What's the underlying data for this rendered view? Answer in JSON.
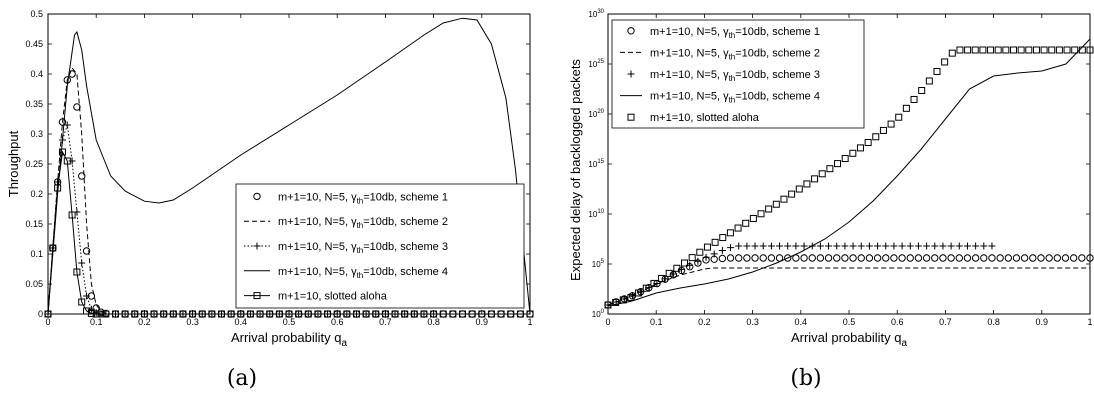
{
  "chart_data": [
    {
      "type": "line",
      "caption": "(a)",
      "xlabel": "Arrival probability q",
      "xlabel_sub": "a",
      "ylabel": "Throughput",
      "xlim": [
        0,
        1
      ],
      "ylim": [
        0,
        0.5
      ],
      "xticks": [
        "0",
        "0.1",
        "0.2",
        "0.3",
        "0.4",
        "0.5",
        "0.6",
        "0.7",
        "0.8",
        "0.9",
        "1"
      ],
      "yticks": [
        "0",
        "0.05",
        "0.1",
        "0.15",
        "0.2",
        "0.25",
        "0.3",
        "0.35",
        "0.4",
        "0.45",
        "0.5"
      ],
      "legend_position": "center-right",
      "series": [
        {
          "name": "m+1=10, N=5, γth=10db, scheme 1",
          "style": "o-markers",
          "x": [
            0,
            0.01,
            0.02,
            0.03,
            0.04,
            0.05,
            0.06,
            0.07,
            0.08,
            0.09,
            0.1,
            0.11,
            0.12,
            0.13,
            0.15,
            0.2,
            0.3,
            0.4,
            0.5,
            0.6,
            0.7,
            0.8,
            0.9,
            1.0
          ],
          "y": [
            0,
            0.11,
            0.22,
            0.32,
            0.39,
            0.4,
            0.345,
            0.23,
            0.105,
            0.03,
            0.01,
            0.003,
            0.001,
            0,
            0,
            0,
            0,
            0,
            0,
            0,
            0,
            0,
            0,
            0
          ]
        },
        {
          "name": "m+1=10, N=5, γth=10db, scheme 2",
          "style": "dashed",
          "x": [
            0,
            0.01,
            0.02,
            0.03,
            0.04,
            0.05,
            0.06,
            0.07,
            0.08,
            0.09,
            0.1,
            0.11,
            0.12,
            0.13,
            0.15,
            0.2,
            0.5,
            1.0
          ],
          "y": [
            0,
            0.11,
            0.22,
            0.32,
            0.39,
            0.41,
            0.4,
            0.3,
            0.15,
            0.05,
            0.015,
            0.005,
            0.001,
            0,
            0,
            0,
            0,
            0
          ]
        },
        {
          "name": "m+1=10, N=5, γth=10db, scheme 3",
          "style": "dotted-plus",
          "x": [
            0,
            0.01,
            0.02,
            0.03,
            0.04,
            0.05,
            0.06,
            0.07,
            0.08,
            0.09,
            0.1,
            0.11,
            0.12,
            0.13,
            0.15,
            0.2,
            0.3,
            0.4,
            0.5,
            0.6,
            0.7,
            0.8
          ],
          "y": [
            0,
            0.11,
            0.22,
            0.29,
            0.315,
            0.255,
            0.17,
            0.085,
            0.03,
            0.008,
            0.002,
            0,
            0,
            0,
            0,
            0,
            0,
            0,
            0,
            0,
            0,
            0
          ]
        },
        {
          "name": "m+1=10, N=5, γth=10db, scheme 4",
          "style": "solid",
          "x": [
            0,
            0.02,
            0.04,
            0.055,
            0.06,
            0.07,
            0.08,
            0.1,
            0.13,
            0.16,
            0.2,
            0.23,
            0.26,
            0.3,
            0.4,
            0.5,
            0.6,
            0.7,
            0.78,
            0.82,
            0.86,
            0.89,
            0.92,
            0.95,
            0.97,
            0.985,
            1.0
          ],
          "y": [
            0,
            0.2,
            0.38,
            0.465,
            0.47,
            0.44,
            0.38,
            0.29,
            0.23,
            0.205,
            0.188,
            0.185,
            0.19,
            0.21,
            0.265,
            0.315,
            0.365,
            0.42,
            0.465,
            0.485,
            0.493,
            0.49,
            0.45,
            0.36,
            0.24,
            0.12,
            0
          ]
        },
        {
          "name": "m+1=10, slotted aloha",
          "style": "square-markers",
          "x": [
            0,
            0.01,
            0.02,
            0.03,
            0.04,
            0.05,
            0.06,
            0.07,
            0.08,
            0.09,
            0.1,
            0.11,
            0.12,
            0.13,
            0.14,
            0.15,
            0.2,
            0.3,
            0.4,
            0.5,
            0.6,
            0.7,
            0.8,
            0.9,
            1.0
          ],
          "y": [
            0,
            0.11,
            0.21,
            0.27,
            0.255,
            0.165,
            0.07,
            0.02,
            0.005,
            0.001,
            0,
            0,
            0,
            0,
            0,
            0,
            0,
            0,
            0,
            0,
            0,
            0,
            0,
            0,
            0
          ]
        }
      ]
    },
    {
      "type": "line",
      "caption": "(b)",
      "xlabel": "Arrival probability q",
      "xlabel_sub": "a",
      "ylabel": "Expected delay of backlogged packets",
      "yscale": "log",
      "xlim": [
        0,
        1
      ],
      "ylim_log10": [
        0,
        30
      ],
      "xticks": [
        "0",
        "0.1",
        "0.2",
        "0.3",
        "0.4",
        "0.5",
        "0.6",
        "0.7",
        "0.8",
        "0.9",
        "1"
      ],
      "yticks": [
        {
          "base": "10",
          "exp": "0"
        },
        {
          "base": "10",
          "exp": "5"
        },
        {
          "base": "10",
          "exp": "10"
        },
        {
          "base": "10",
          "exp": "15"
        },
        {
          "base": "10",
          "exp": "20"
        },
        {
          "base": "10",
          "exp": "25"
        },
        {
          "base": "10",
          "exp": "30"
        }
      ],
      "legend_position": "top-left",
      "series": [
        {
          "name": "m+1=10, N=5, γth=10db, scheme 1",
          "style": "o-markers",
          "x": [
            0,
            0.05,
            0.1,
            0.15,
            0.2,
            0.25,
            1.0
          ],
          "log10y": [
            0.9,
            1.8,
            3.0,
            4.3,
            5.4,
            5.6,
            5.6
          ]
        },
        {
          "name": "m+1=10, N=5, γth=10db, scheme 2",
          "style": "dashed",
          "x": [
            0,
            0.05,
            0.1,
            0.15,
            0.2,
            0.22,
            1.0
          ],
          "log10y": [
            0.9,
            1.8,
            3.0,
            3.9,
            4.5,
            4.6,
            4.6
          ]
        },
        {
          "name": "m+1=10, N=5, γth=10db, scheme 3",
          "style": "plus-markers",
          "x": [
            0,
            0.05,
            0.1,
            0.15,
            0.2,
            0.25,
            0.27,
            1.0
          ],
          "log10y": [
            0.9,
            1.8,
            3.0,
            4.4,
            5.6,
            6.6,
            6.8,
            6.8
          ]
        },
        {
          "name": "m+1=10, N=5, γth=10db, scheme 4",
          "style": "solid",
          "x": [
            0,
            0.05,
            0.1,
            0.15,
            0.2,
            0.25,
            0.3,
            0.35,
            0.4,
            0.45,
            0.5,
            0.55,
            0.6,
            0.65,
            0.7,
            0.75,
            0.8,
            0.85,
            0.9,
            0.95,
            1.0
          ],
          "log10y": [
            0.8,
            1.3,
            2.1,
            2.6,
            3.0,
            3.5,
            4.2,
            5.1,
            6.2,
            7.5,
            9.2,
            11.3,
            13.8,
            16.5,
            19.5,
            22.5,
            23.8,
            24.1,
            24.3,
            25.0,
            27.5
          ]
        },
        {
          "name": "m+1=10, slotted aloha",
          "style": "square-markers",
          "x": [
            0,
            0.05,
            0.1,
            0.15,
            0.2,
            0.25,
            0.3,
            0.35,
            0.4,
            0.45,
            0.5,
            0.55,
            0.6,
            0.65,
            0.7,
            0.72,
            1.0
          ],
          "log10y": [
            0.9,
            1.7,
            3.2,
            4.8,
            6.5,
            8.0,
            9.5,
            11.0,
            12.6,
            14.2,
            15.8,
            17.5,
            19.5,
            22.3,
            25.3,
            26.4,
            26.4
          ]
        }
      ]
    }
  ]
}
